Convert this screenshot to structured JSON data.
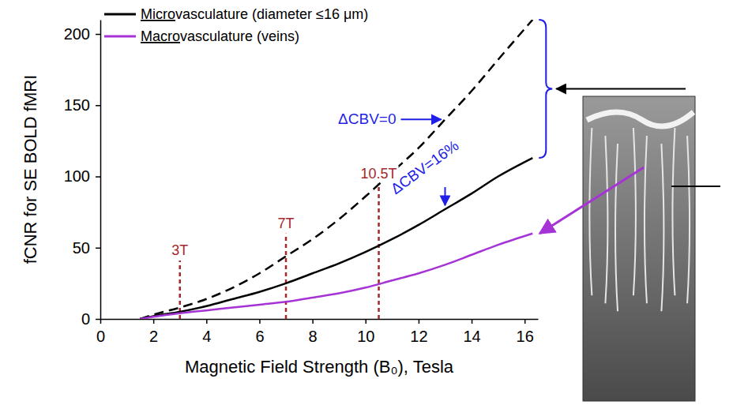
{
  "chart_data": {
    "type": "line",
    "x_label": "Magnetic Field Strength (B₀), Tesla",
    "y_label": "fCNR for SE BOLD fMRI",
    "x": [
      1.5,
      2,
      3,
      4,
      5,
      6,
      7,
      8,
      9,
      10,
      11,
      12,
      13,
      14,
      15,
      16.3
    ],
    "series": [
      {
        "name": "Microvasculature (diameter ≤16 μm)",
        "color": "#000000",
        "line_style": "solid",
        "annotation": {
          "text": "ΔCBV=16%",
          "x": 13,
          "y": 77
        },
        "values": [
          0,
          2,
          5,
          9,
          14,
          19,
          25,
          32,
          39,
          47,
          56,
          66,
          77,
          88,
          100,
          113
        ]
      },
      {
        "color": "#000000",
        "line_style": "dashed",
        "annotation": {
          "text": "ΔCBV=0",
          "x": 13,
          "y": 140
        },
        "values": [
          0,
          3,
          8,
          14,
          22,
          32,
          44,
          56,
          70,
          86,
          103,
          120,
          140,
          160,
          182,
          210
        ]
      },
      {
        "name": "Macrovasculature (veins)",
        "color": "#a633d6",
        "line_style": "solid",
        "values": [
          0,
          1.5,
          4,
          6,
          8,
          10,
          12,
          15,
          18,
          22,
          27,
          32,
          38,
          45,
          52,
          60
        ]
      }
    ],
    "field_lines": [
      {
        "x": 3,
        "y": 41,
        "label": "3T"
      },
      {
        "x": 7,
        "y": 60,
        "label": "7T"
      },
      {
        "x": 10.5,
        "y": 95,
        "label": "10.5T"
      }
    ],
    "xlim": [
      0,
      16.5
    ],
    "ylim": [
      0,
      210
    ],
    "xticks": [
      0,
      2,
      4,
      6,
      8,
      10,
      12,
      14,
      16
    ],
    "yticks": [
      0,
      50,
      100,
      150,
      200
    ],
    "grid": false,
    "legend": "upper left"
  }
}
